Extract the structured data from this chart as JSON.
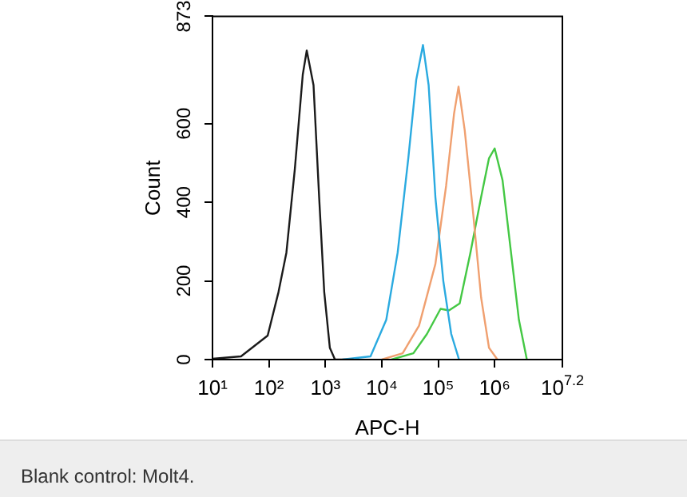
{
  "chart_data": {
    "type": "line",
    "xlabel": "APC-H",
    "ylabel": "Count",
    "log": "x",
    "xlim": [
      10,
      15848932
    ],
    "xticks": [
      {
        "value": 10,
        "label": "10¹"
      },
      {
        "value": 100,
        "label": "10²"
      },
      {
        "value": 1000,
        "label": "10³"
      },
      {
        "value": 10000,
        "label": "10⁴"
      },
      {
        "value": 100000,
        "label": "10⁵"
      },
      {
        "value": 1000000,
        "label": "10⁶"
      },
      {
        "value": 15848932,
        "label": "10$^{7.2}$"
      }
    ],
    "ylim": [
      0,
      873
    ],
    "yticks": [
      0,
      200,
      400,
      600,
      873
    ],
    "grid": false,
    "legend": false,
    "marker": "none",
    "line_style": "solid",
    "series": [
      {
        "color": "#1a1a1a",
        "x": [
          10,
          32,
          95,
          148,
          204,
          288,
          398,
          468,
          617,
          776,
          955,
          1200,
          1480,
          3160
        ],
        "values": [
          2,
          8,
          61,
          172,
          272,
          485,
          725,
          786,
          698,
          413,
          172,
          30,
          0,
          0
        ]
      },
      {
        "color": "#2aaae0",
        "x": [
          2000,
          6310,
          12000,
          19100,
          29500,
          40700,
          53700,
          67600,
          89100,
          123000,
          170000,
          234000
        ],
        "values": [
          0,
          8,
          101,
          272,
          512,
          711,
          800,
          698,
          413,
          200,
          65,
          0
        ]
      },
      {
        "color": "#f0a070",
        "x": [
          10000,
          23400,
          45700,
          89100,
          138000,
          191000,
          229000,
          295000,
          417000,
          575000,
          794000,
          1120000
        ],
        "values": [
          0,
          16,
          86,
          243,
          442,
          626,
          694,
          583,
          370,
          158,
          30,
          0
        ]
      },
      {
        "color": "#44c844",
        "x": [
          14800,
          36300,
          63100,
          110000,
          155000,
          240000,
          372000,
          575000,
          794000,
          1000000,
          1380000,
          1950000,
          2690000,
          3720000
        ],
        "values": [
          0,
          16,
          65,
          129,
          125,
          143,
          272,
          413,
          512,
          537,
          456,
          272,
          101,
          0
        ]
      }
    ],
    "annotations": [
      "Blank control: Molt4."
    ]
  }
}
